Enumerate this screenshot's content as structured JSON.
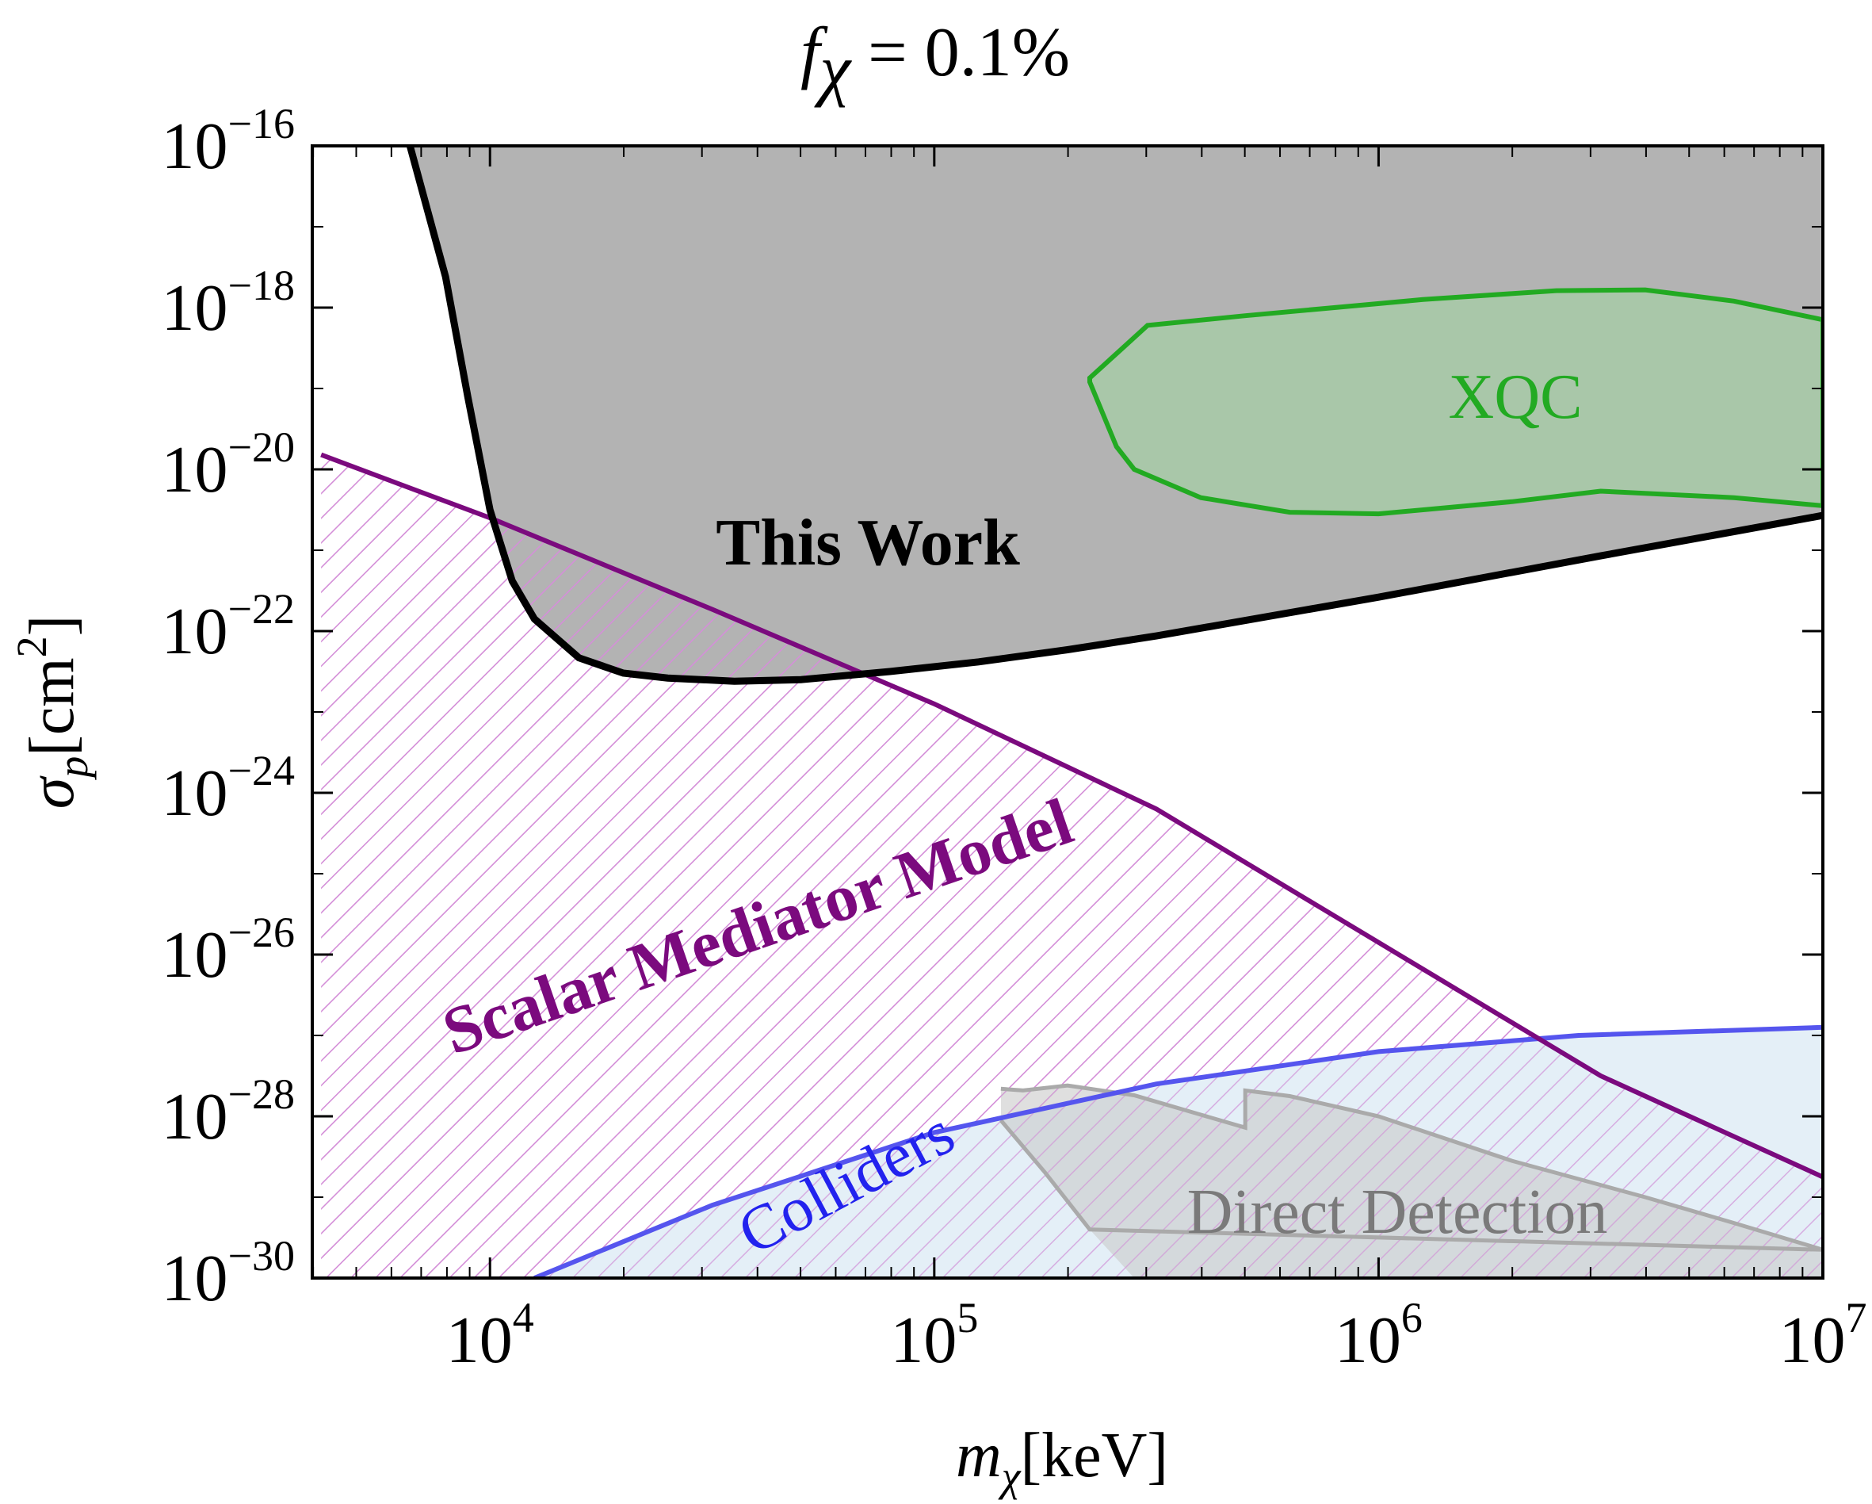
{
  "chart_data": {
    "type": "area",
    "title": "f_χ = 0.1%",
    "title_parts": {
      "f": "f",
      "sub": "χ",
      "rest": " = 0.1%"
    },
    "xlabel": {
      "var": "m",
      "sub": "χ",
      "unit": "[keV]"
    },
    "ylabel": {
      "var": "σ",
      "sub": "p",
      "unit_open": "[cm",
      "unit_exp": "2",
      "unit_close": "]"
    },
    "xscale": "log",
    "yscale": "log",
    "xlim_log10": [
      3.6,
      7.0
    ],
    "ylim_log10": [
      -30,
      -16
    ],
    "x_ticks": [
      {
        "log10": 4,
        "base": "10",
        "exp": "4"
      },
      {
        "log10": 5,
        "base": "10",
        "exp": "5"
      },
      {
        "log10": 6,
        "base": "10",
        "exp": "6"
      },
      {
        "log10": 7,
        "base": "10",
        "exp": "7"
      }
    ],
    "y_ticks": [
      {
        "log10": -16,
        "base": "10",
        "exp": "−16"
      },
      {
        "log10": -18,
        "base": "10",
        "exp": "−18"
      },
      {
        "log10": -20,
        "base": "10",
        "exp": "−20"
      },
      {
        "log10": -22,
        "base": "10",
        "exp": "−22"
      },
      {
        "log10": -24,
        "base": "10",
        "exp": "−24"
      },
      {
        "log10": -26,
        "base": "10",
        "exp": "−26"
      },
      {
        "log10": -28,
        "base": "10",
        "exp": "−28"
      },
      {
        "log10": -30,
        "base": "10",
        "exp": "−30"
      }
    ],
    "series": [
      {
        "name": "This Work",
        "label": "This Work",
        "line_color": "#000000",
        "fill_color": "#b3b3b3",
        "fill": "above",
        "points_log10": [
          [
            3.82,
            -16
          ],
          [
            3.9,
            -17.62
          ],
          [
            3.95,
            -19.1
          ],
          [
            4.0,
            -20.5
          ],
          [
            4.05,
            -21.38
          ],
          [
            4.1,
            -21.85
          ],
          [
            4.2,
            -22.33
          ],
          [
            4.3,
            -22.52
          ],
          [
            4.4,
            -22.58
          ],
          [
            4.55,
            -22.62
          ],
          [
            4.7,
            -22.6
          ],
          [
            4.9,
            -22.5
          ],
          [
            5.1,
            -22.38
          ],
          [
            5.3,
            -22.23
          ],
          [
            5.5,
            -22.06
          ],
          [
            6.0,
            -21.58
          ],
          [
            6.5,
            -21.07
          ],
          [
            7.0,
            -20.57
          ]
        ]
      },
      {
        "name": "XQC",
        "label": "XQC",
        "line_color": "#22aa22",
        "fill_color": "#a9c7a9",
        "fill": "closed",
        "points_log10": [
          [
            5.35,
            -18.87
          ],
          [
            5.42,
            -18.52
          ],
          [
            5.48,
            -18.22
          ],
          [
            5.7,
            -18.1
          ],
          [
            6.1,
            -17.9
          ],
          [
            6.4,
            -17.79
          ],
          [
            6.6,
            -17.78
          ],
          [
            6.8,
            -17.92
          ],
          [
            7.0,
            -18.15
          ],
          [
            7.0,
            -20.45
          ],
          [
            6.8,
            -20.35
          ],
          [
            6.5,
            -20.27
          ],
          [
            6.3,
            -20.4
          ],
          [
            6.0,
            -20.55
          ],
          [
            5.8,
            -20.53
          ],
          [
            5.6,
            -20.35
          ],
          [
            5.45,
            -20.0
          ],
          [
            5.41,
            -19.72
          ],
          [
            5.35,
            -18.92
          ]
        ]
      },
      {
        "name": "Scalar Mediator Model",
        "label": "Scalar Mediator Model",
        "line_color": "#7b0a7e",
        "hatch_color": "#d48fd8",
        "fill": "below",
        "points_log10": [
          [
            3.62,
            -19.82
          ],
          [
            4.0,
            -20.6
          ],
          [
            4.5,
            -21.73
          ],
          [
            5.0,
            -22.9
          ],
          [
            5.5,
            -24.2
          ],
          [
            6.0,
            -25.85
          ],
          [
            6.5,
            -27.5
          ],
          [
            7.0,
            -28.75
          ]
        ]
      },
      {
        "name": "Colliders",
        "label": "Colliders",
        "line_color": "#5555ee",
        "fill_color": "#dbe9f4",
        "fill": "above",
        "points_log10": [
          [
            4.1,
            -30
          ],
          [
            4.5,
            -29.1
          ],
          [
            5.0,
            -28.2
          ],
          [
            5.5,
            -27.6
          ],
          [
            6.0,
            -27.2
          ],
          [
            6.45,
            -27.0
          ],
          [
            7.0,
            -26.9
          ]
        ]
      },
      {
        "name": "Direct Detection",
        "label": "Direct Detection",
        "line_color": "#aaaaaa",
        "fill_color": "#c9c9c9",
        "fill": "closed",
        "points_log10": [
          [
            5.15,
            -27.66
          ],
          [
            5.2,
            -27.68
          ],
          [
            5.3,
            -27.62
          ],
          [
            5.45,
            -27.74
          ],
          [
            5.6,
            -27.98
          ],
          [
            5.7,
            -28.14
          ],
          [
            5.7,
            -27.68
          ],
          [
            5.8,
            -27.75
          ],
          [
            6.0,
            -28.0
          ],
          [
            6.3,
            -28.55
          ],
          [
            6.6,
            -29.0
          ],
          [
            6.8,
            -29.32
          ],
          [
            7.0,
            -29.65
          ],
          [
            7.0,
            -30.0
          ],
          [
            5.45,
            -30.0
          ],
          [
            5.35,
            -29.4
          ],
          [
            5.25,
            -28.7
          ],
          [
            5.15,
            -28.05
          ]
        ]
      }
    ],
    "annotations": [
      {
        "text": "This Work",
        "series": "This Work"
      },
      {
        "text": "XQC",
        "series": "XQC"
      },
      {
        "text": "Scalar Mediator Model",
        "series": "Scalar Mediator Model"
      },
      {
        "text": "Colliders",
        "series": "Colliders"
      },
      {
        "text": "Direct Detection",
        "series": "Direct Detection"
      }
    ]
  }
}
